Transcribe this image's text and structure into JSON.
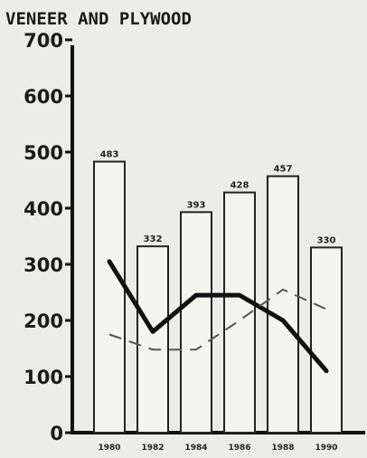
{
  "chart_data": {
    "type": "bar",
    "title": "VENEER AND PLYWOOD",
    "xlabel": "",
    "ylabel": "",
    "ylim": [
      0,
      700
    ],
    "yticks": [
      "0",
      "100",
      "200",
      "300",
      "400",
      "500",
      "600",
      "700"
    ],
    "categories": [
      "1980",
      "1982",
      "1984",
      "1986",
      "1988",
      "1990"
    ],
    "series": [
      {
        "type": "bar",
        "values": [
          483,
          332,
          393,
          428,
          457,
          330
        ],
        "labels": [
          "483",
          "332",
          "393",
          "428",
          "457",
          "330"
        ]
      },
      {
        "type": "line",
        "style": "solid",
        "values": [
          305,
          180,
          245,
          245,
          200,
          110
        ]
      },
      {
        "type": "line",
        "style": "dashed",
        "values": [
          175,
          148,
          148,
          200,
          255,
          220
        ]
      }
    ],
    "grid": false,
    "colors": {
      "bar_fill": "#f4f4f1",
      "bar_stroke": "#222222",
      "line": "#111111",
      "dashed": "#555555"
    }
  }
}
